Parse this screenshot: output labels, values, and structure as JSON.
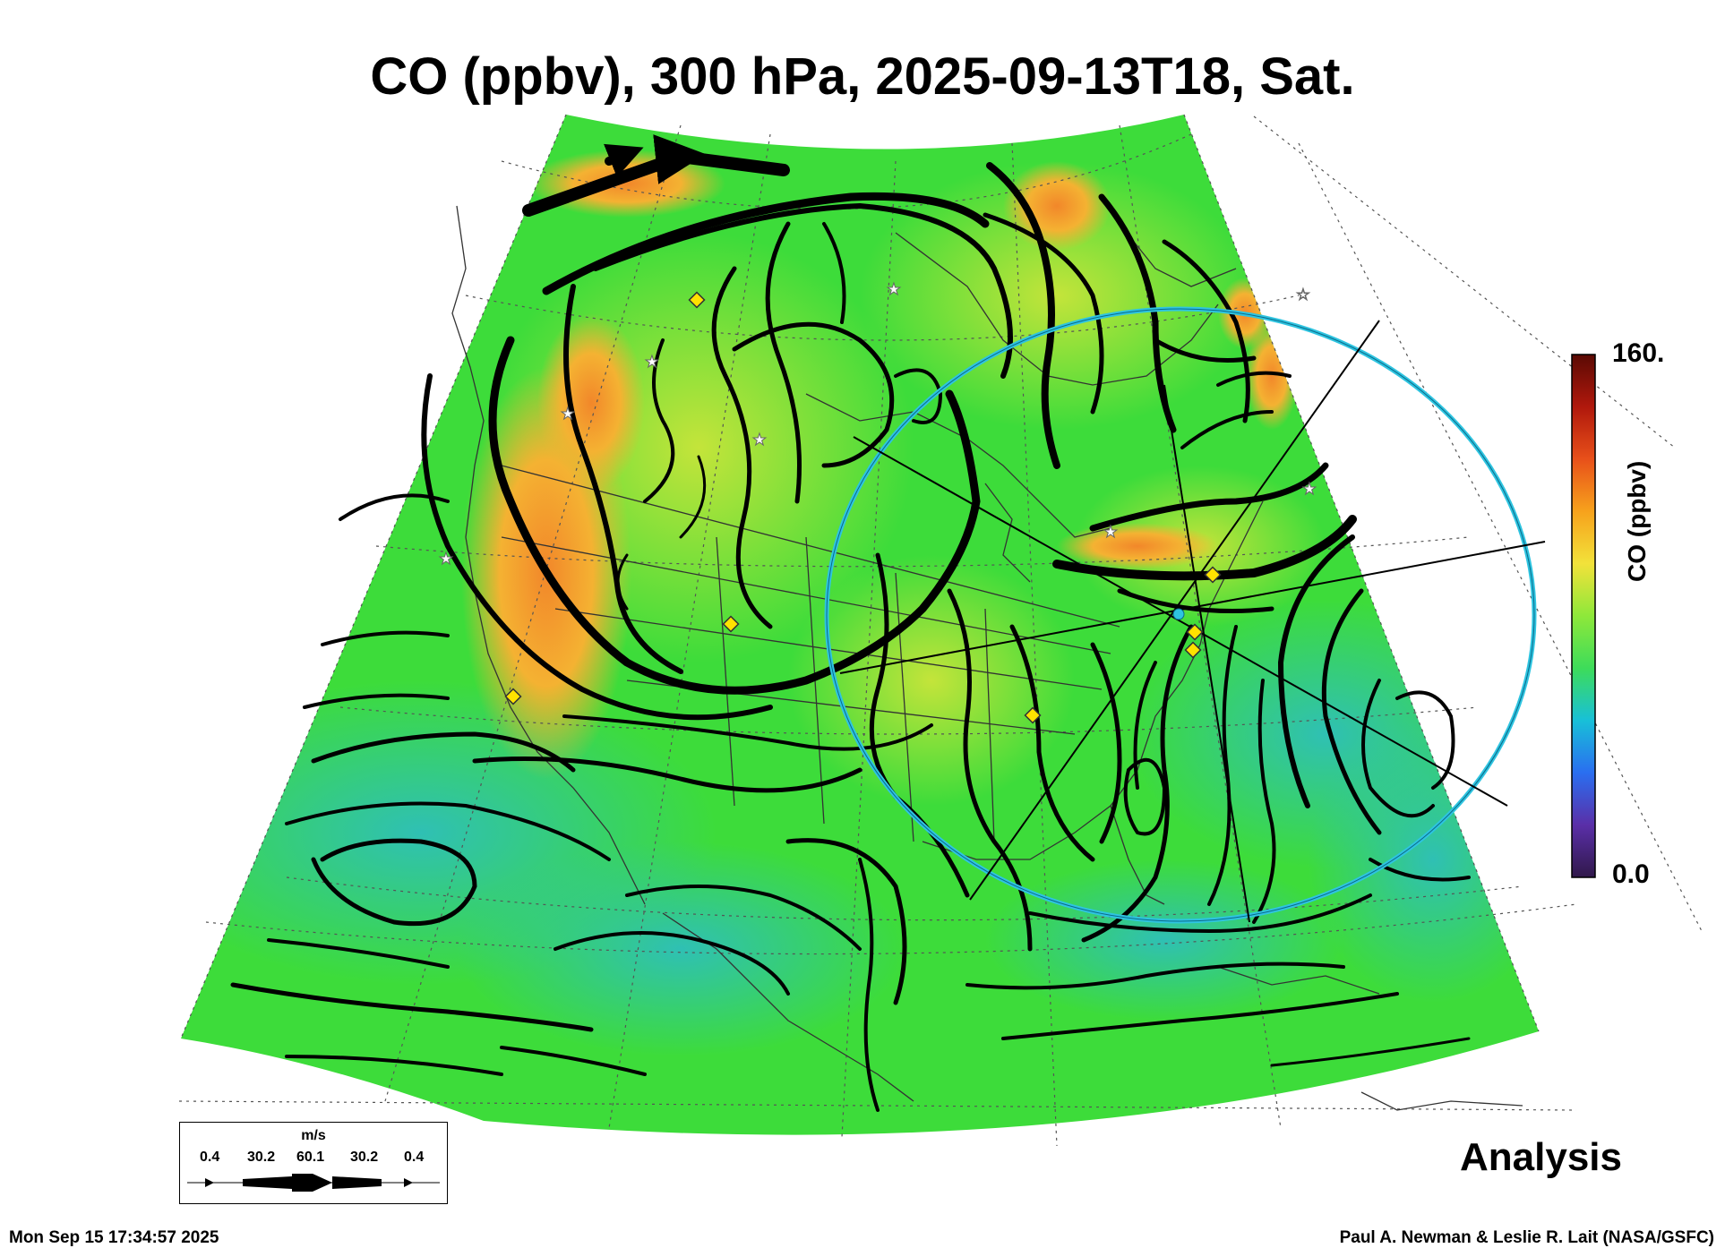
{
  "title": "CO (ppbv), 300 hPa, 2025-09-13T18, Sat.",
  "colorbar": {
    "max_label": "160.",
    "min_label": "0.0",
    "label": "CO (ppbv)",
    "stops": [
      "#30184a",
      "#5a2fa8",
      "#2a6ef0",
      "#18c0d8",
      "#3ddc5a",
      "#8ee83a",
      "#f2e23a",
      "#f7a21c",
      "#e8501a",
      "#b0180c",
      "#5a0a04"
    ]
  },
  "wind_legend": {
    "units": "m/s",
    "ticks": [
      "0.4",
      "30.2",
      "60.1",
      "30.2",
      "0.4"
    ]
  },
  "analysis_label": "Analysis",
  "timestamp": "Mon Sep 15 17:34:57 2025",
  "credit": "Paul A. Newman & Leslie R. Lait (NASA/GSFC)",
  "colors": {
    "field_green": "#3ddc3a",
    "field_orange": "#f19a2a",
    "field_cyan": "#35c4a6",
    "ring": "#2ec4e0",
    "marker_yellow": "#ffe200"
  }
}
